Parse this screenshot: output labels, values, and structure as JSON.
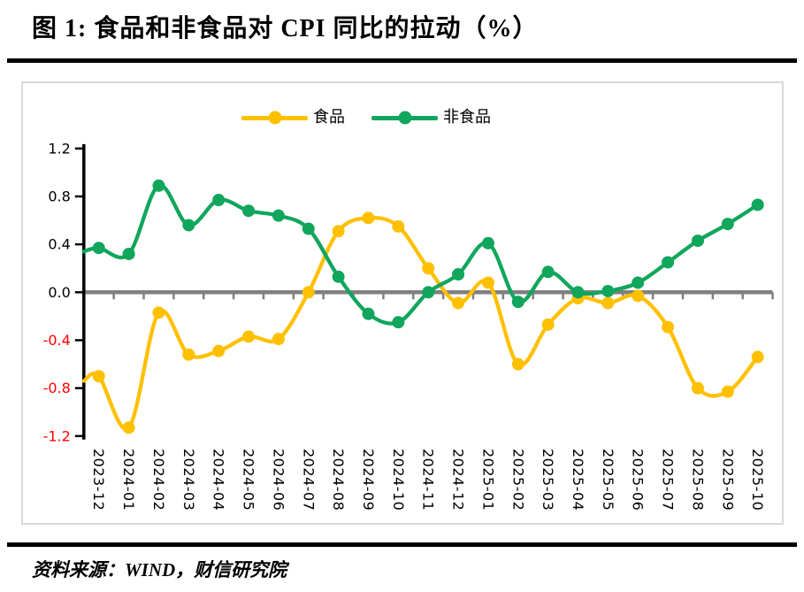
{
  "page": {
    "title": "图 1:  食品和非食品对 CPI 同比的拉动（%）",
    "source": "资料来源：WIND，财信研究院"
  },
  "chart_data": {
    "type": "line",
    "title": "食品和非食品对 CPI 同比的拉动（%）",
    "xlabel": "",
    "ylabel": "",
    "categories": [
      "2023-12",
      "2024-01",
      "2024-02",
      "2024-03",
      "2024-04",
      "2024-05",
      "2024-06",
      "2024-07",
      "2024-08",
      "2024-09",
      "2024-10",
      "2024-11",
      "2024-12",
      "2025-01",
      "2025-02",
      "2025-03",
      "2025-04",
      "2025-05",
      "2025-06",
      "2025-07",
      "2025-08",
      "2025-09",
      "2025-10"
    ],
    "series": [
      {
        "name": "食品",
        "color": "#FFC000",
        "axis_edge_start": -0.74,
        "values": [
          -0.7,
          -1.13,
          -0.17,
          -0.52,
          -0.49,
          -0.37,
          -0.39,
          0.0,
          0.51,
          0.62,
          0.55,
          0.2,
          -0.09,
          0.08,
          -0.6,
          -0.27,
          -0.05,
          -0.09,
          -0.03,
          -0.29,
          -0.8,
          -0.83,
          -0.54
        ]
      },
      {
        "name": "非食品",
        "color": "#10A65C",
        "axis_edge_start": 0.34,
        "values": [
          0.37,
          0.32,
          0.89,
          0.56,
          0.77,
          0.68,
          0.64,
          0.53,
          0.13,
          -0.18,
          -0.25,
          0.0,
          0.15,
          0.41,
          -0.08,
          0.17,
          0.0,
          0.01,
          0.08,
          0.25,
          0.43,
          0.57,
          0.73
        ]
      }
    ],
    "ylim": [
      -1.2,
      1.2
    ],
    "yticks": [
      1.2,
      0.8,
      0.4,
      0.0,
      -0.4,
      -0.8,
      -1.2
    ],
    "grid": false,
    "smooth_lines": true,
    "legend_position": "top-center",
    "colors": {
      "axis": "#000000",
      "zero_line": "#808080",
      "x_tick": "#808080",
      "positive_tick_label": "#000000",
      "negative_tick_label": "#FF0000",
      "x_tick_label": "#000000",
      "frame_border": "#D9D9D9"
    }
  }
}
